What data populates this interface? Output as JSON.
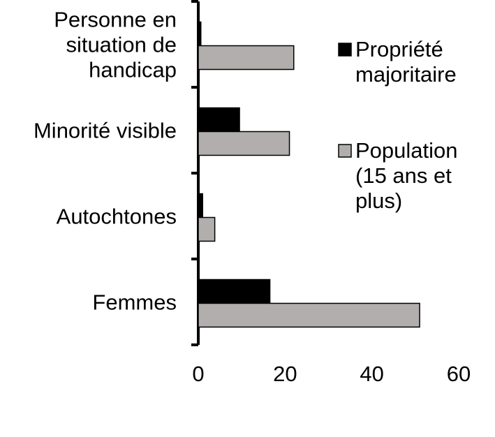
{
  "chart_data": {
    "type": "bar",
    "orientation": "horizontal",
    "categories": [
      [
        "Personne en",
        "situation de",
        "handicap"
      ],
      [
        "Minorité visible"
      ],
      [
        "Autochtones"
      ],
      [
        "Femmes"
      ]
    ],
    "series": [
      {
        "name": "Propriété majoritaire",
        "name_lines": [
          "Propriété",
          "majoritaire"
        ],
        "color": "#000000",
        "values": [
          0.6,
          9.5,
          1.0,
          16.5
        ]
      },
      {
        "name": "Population (15 ans et plus)",
        "name_lines": [
          "Population",
          "(15 ans et",
          "plus)"
        ],
        "color": "#b2aeae",
        "values": [
          22,
          21,
          3.8,
          51
        ]
      }
    ],
    "xticks": [
      "0",
      "20",
      "40",
      "60"
    ],
    "xlim": [
      0,
      60
    ],
    "legend_position": "right",
    "grid": false
  }
}
